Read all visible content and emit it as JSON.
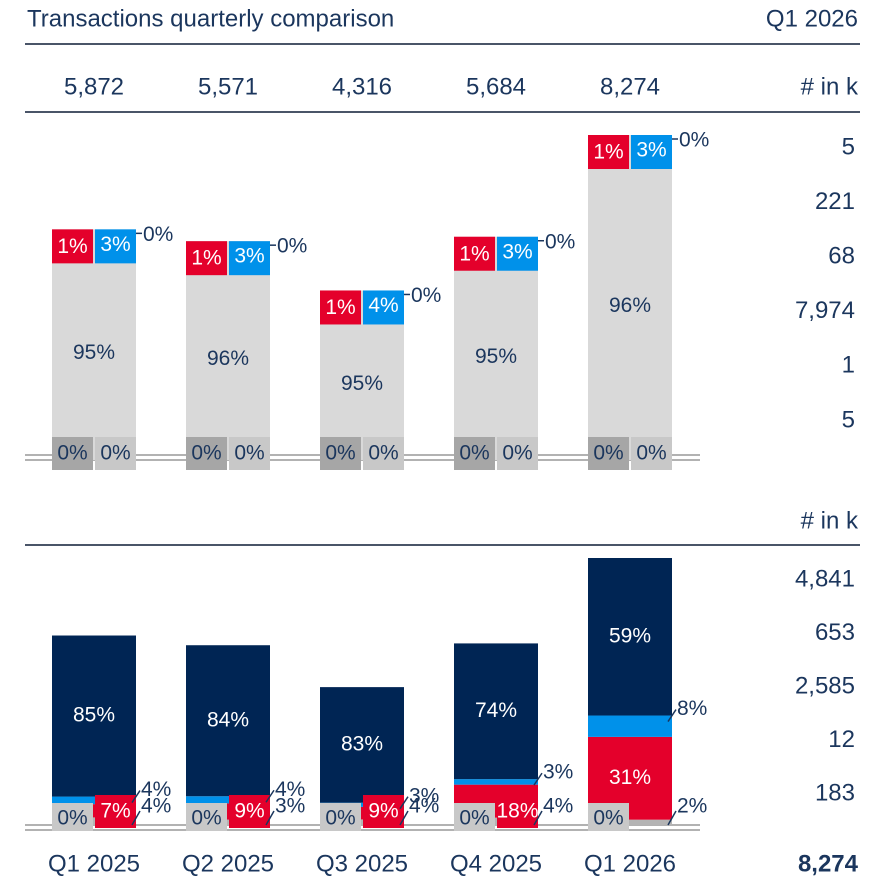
{
  "title": "Transactions quarterly comparison",
  "period": "Q1 2026",
  "unit": "# in k",
  "categories": [
    "Q1 2025",
    "Q2 2025",
    "Q3 2025",
    "Q4 2025",
    "Q1 2026"
  ],
  "totals": [
    {
      "value": 5872,
      "label": "5,872"
    },
    {
      "value": 5571,
      "label": "5,571"
    },
    {
      "value": 4316,
      "label": "4,316"
    },
    {
      "value": 5684,
      "label": "5,684"
    },
    {
      "value": 8274,
      "label": "8,274"
    }
  ],
  "chart_data": [
    {
      "type": "stacked-top",
      "series": [
        {
          "color": "#1b365d",
          "values": [
            0,
            0,
            0,
            0,
            0
          ],
          "value_labels": [
            "0%",
            "0%",
            "0%",
            "0%",
            "0%"
          ]
        },
        {
          "color": "#0091ea",
          "values": [
            3,
            3,
            4,
            3,
            3
          ],
          "value_labels": [
            "3%",
            "3%",
            "4%",
            "3%",
            "3%"
          ]
        },
        {
          "color": "#e4002b",
          "values": [
            1,
            1,
            1,
            1,
            1
          ],
          "value_labels": [
            "1%",
            "1%",
            "1%",
            "1%",
            "1%"
          ]
        },
        {
          "color": "#d9d9d9",
          "values": [
            95,
            96,
            95,
            95,
            96
          ],
          "value_labels": [
            "95%",
            "96%",
            "95%",
            "95%",
            "96%"
          ]
        },
        {
          "color": "#a6a6a6",
          "values": [
            0,
            0,
            0,
            0,
            0
          ],
          "value_labels": [
            "0%",
            "0%",
            "0%",
            "0%",
            "0%"
          ]
        },
        {
          "color": "#c8c8c8",
          "values": [
            0,
            0,
            0,
            0,
            0
          ],
          "value_labels": [
            "0%",
            "0%",
            "0%",
            "0%",
            "0%"
          ]
        }
      ],
      "side_values": [
        5,
        221,
        68,
        {
          "value": 7974,
          "label": "7,974"
        },
        1,
        5
      ]
    },
    {
      "type": "stacked-bottom",
      "unit": "# in k",
      "series": [
        {
          "color": "#002554",
          "values": [
            85,
            84,
            83,
            74,
            59
          ],
          "value_labels": [
            "85%",
            "84%",
            "83%",
            "74%",
            "59%"
          ]
        },
        {
          "color": "#0091ea",
          "values": [
            4,
            4,
            3,
            3,
            8
          ],
          "value_labels": [
            "4%",
            "4%",
            "3%",
            "3%",
            "8%"
          ]
        },
        {
          "color": "#e4002b",
          "values": [
            7,
            9,
            9,
            18,
            31
          ],
          "value_labels": [
            "7%",
            "9%",
            "9%",
            "18%",
            "31%"
          ]
        },
        {
          "color": "#c8c8c8",
          "values": [
            0,
            0,
            0,
            0,
            0
          ],
          "value_labels": [
            "0%",
            "0%",
            "0%",
            "0%",
            "0%"
          ]
        },
        {
          "color": "#b4b4b4",
          "values": [
            4,
            3,
            4,
            4,
            2
          ],
          "value_labels": [
            "4%",
            "3%",
            "4%",
            "4%",
            "2%"
          ]
        }
      ],
      "side_values": [
        {
          "value": 4841,
          "label": "4,841"
        },
        653,
        {
          "value": 2585,
          "label": "2,585"
        },
        12,
        183
      ],
      "total": {
        "value": 8274,
        "label": "8,274"
      }
    }
  ]
}
